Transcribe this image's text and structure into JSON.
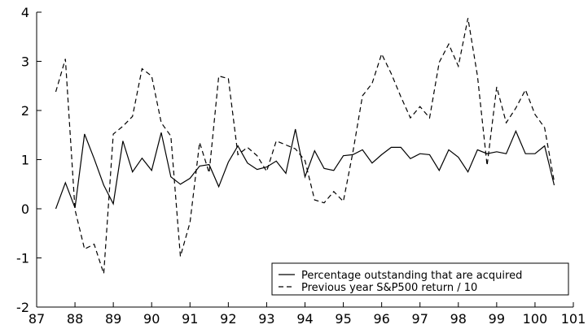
{
  "chart_data": {
    "type": "line",
    "xlim": [
      87,
      101
    ],
    "ylim": [
      -2,
      4
    ],
    "x_ticks": [
      87,
      88,
      89,
      90,
      91,
      92,
      93,
      94,
      95,
      96,
      97,
      98,
      99,
      100,
      101
    ],
    "y_ticks": [
      -2,
      -1,
      0,
      1,
      2,
      3,
      4
    ],
    "grid": false,
    "legend_position": "bottom-right",
    "series": [
      {
        "name": "Percentage outstanding that are acquired",
        "style": "solid",
        "color": "#000000",
        "points": [
          [
            87.5,
            0.0
          ],
          [
            87.75,
            0.53
          ],
          [
            88.0,
            0.02
          ],
          [
            88.25,
            1.52
          ],
          [
            88.5,
            1.02
          ],
          [
            88.75,
            0.48
          ],
          [
            89.0,
            0.1
          ],
          [
            89.25,
            1.38
          ],
          [
            89.5,
            0.75
          ],
          [
            89.75,
            1.03
          ],
          [
            90.0,
            0.78
          ],
          [
            90.25,
            1.55
          ],
          [
            90.5,
            0.65
          ],
          [
            90.75,
            0.5
          ],
          [
            91.0,
            0.62
          ],
          [
            91.25,
            0.87
          ],
          [
            91.5,
            0.9
          ],
          [
            91.75,
            0.45
          ],
          [
            92.0,
            0.95
          ],
          [
            92.25,
            1.28
          ],
          [
            92.5,
            0.93
          ],
          [
            92.75,
            0.8
          ],
          [
            93.0,
            0.85
          ],
          [
            93.25,
            0.97
          ],
          [
            93.5,
            0.72
          ],
          [
            93.75,
            1.62
          ],
          [
            94.0,
            0.65
          ],
          [
            94.25,
            1.18
          ],
          [
            94.5,
            0.82
          ],
          [
            94.75,
            0.78
          ],
          [
            95.0,
            1.08
          ],
          [
            95.25,
            1.1
          ],
          [
            95.5,
            1.2
          ],
          [
            95.75,
            0.93
          ],
          [
            96.0,
            1.1
          ],
          [
            96.25,
            1.25
          ],
          [
            96.5,
            1.25
          ],
          [
            96.75,
            1.02
          ],
          [
            97.0,
            1.12
          ],
          [
            97.25,
            1.1
          ],
          [
            97.5,
            0.78
          ],
          [
            97.75,
            1.2
          ],
          [
            98.0,
            1.05
          ],
          [
            98.25,
            0.75
          ],
          [
            98.5,
            1.2
          ],
          [
            98.75,
            1.12
          ],
          [
            99.0,
            1.16
          ],
          [
            99.25,
            1.12
          ],
          [
            99.5,
            1.58
          ],
          [
            99.75,
            1.12
          ],
          [
            100.0,
            1.12
          ],
          [
            100.25,
            1.28
          ],
          [
            100.5,
            0.48
          ]
        ]
      },
      {
        "name": "Previous year S&P500 return / 10",
        "style": "dashed",
        "color": "#000000",
        "points": [
          [
            87.5,
            2.38
          ],
          [
            87.75,
            3.05
          ],
          [
            88.0,
            -0.02
          ],
          [
            88.25,
            -0.82
          ],
          [
            88.5,
            -0.72
          ],
          [
            88.75,
            -1.32
          ],
          [
            89.0,
            1.52
          ],
          [
            89.25,
            1.68
          ],
          [
            89.5,
            1.88
          ],
          [
            89.75,
            2.85
          ],
          [
            90.0,
            2.7
          ],
          [
            90.25,
            1.75
          ],
          [
            90.5,
            1.48
          ],
          [
            90.75,
            -0.97
          ],
          [
            91.0,
            -0.28
          ],
          [
            91.25,
            1.35
          ],
          [
            91.5,
            0.73
          ],
          [
            91.75,
            2.7
          ],
          [
            92.0,
            2.65
          ],
          [
            92.25,
            1.1
          ],
          [
            92.5,
            1.25
          ],
          [
            92.75,
            1.08
          ],
          [
            93.0,
            0.76
          ],
          [
            93.25,
            1.38
          ],
          [
            93.5,
            1.3
          ],
          [
            93.75,
            1.22
          ],
          [
            94.0,
            0.98
          ],
          [
            94.25,
            0.18
          ],
          [
            94.5,
            0.12
          ],
          [
            94.75,
            0.35
          ],
          [
            95.0,
            0.15
          ],
          [
            95.25,
            1.15
          ],
          [
            95.5,
            2.3
          ],
          [
            95.75,
            2.55
          ],
          [
            96.0,
            3.15
          ],
          [
            96.25,
            2.75
          ],
          [
            96.5,
            2.28
          ],
          [
            96.75,
            1.85
          ],
          [
            97.0,
            2.08
          ],
          [
            97.25,
            1.85
          ],
          [
            97.5,
            2.98
          ],
          [
            97.75,
            3.35
          ],
          [
            98.0,
            2.9
          ],
          [
            98.25,
            3.88
          ],
          [
            98.5,
            2.7
          ],
          [
            98.75,
            0.88
          ],
          [
            99.0,
            2.48
          ],
          [
            99.25,
            1.75
          ],
          [
            99.5,
            2.05
          ],
          [
            99.75,
            2.42
          ],
          [
            100.0,
            1.92
          ],
          [
            100.25,
            1.65
          ],
          [
            100.5,
            0.55
          ]
        ]
      }
    ]
  }
}
